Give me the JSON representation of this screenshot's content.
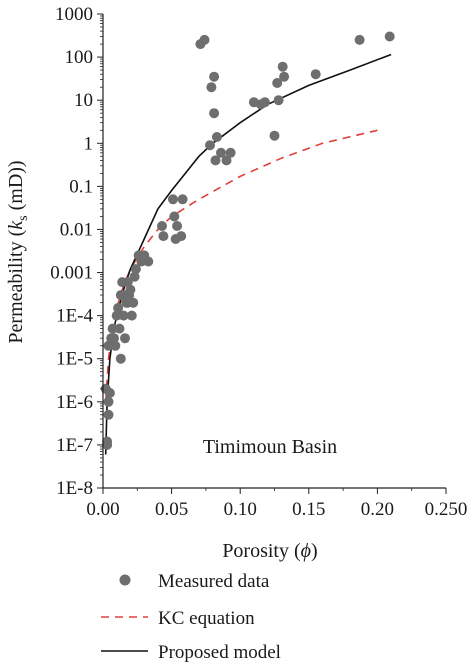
{
  "chart_data": {
    "type": "scatter",
    "title": "",
    "annotation": "Timimoun Basin",
    "xlabel": {
      "prefix": "Porosity (",
      "symbol": "ϕ",
      "suffix": ")"
    },
    "ylabel": {
      "prefix": "Permeability (",
      "symbol": "k",
      "sub": "s",
      "suffix": " (mD))"
    },
    "xlim": [
      0,
      0.25
    ],
    "ylim": [
      1e-08,
      1000
    ],
    "yscale": "log",
    "grid": false,
    "legend_position": "bottom",
    "x_ticks": [
      {
        "value": 0.0,
        "label": "0.00"
      },
      {
        "value": 0.05,
        "label": "0.05"
      },
      {
        "value": 0.1,
        "label": "0.10"
      },
      {
        "value": 0.15,
        "label": "0.15"
      },
      {
        "value": 0.2,
        "label": "0.20"
      },
      {
        "value": 0.25,
        "label": "0.250"
      }
    ],
    "y_ticks": [
      {
        "value": 1000,
        "label": "1000"
      },
      {
        "value": 100,
        "label": "100"
      },
      {
        "value": 10,
        "label": "10"
      },
      {
        "value": 1,
        "label": "1"
      },
      {
        "value": 0.1,
        "label": "0.1"
      },
      {
        "value": 0.01,
        "label": "0.01"
      },
      {
        "value": 0.001,
        "label": "0.001"
      },
      {
        "value": 0.0001,
        "label": "1E-4"
      },
      {
        "value": 1e-05,
        "label": "1E-5"
      },
      {
        "value": 1e-06,
        "label": "1E-6"
      },
      {
        "value": 1e-07,
        "label": "1E-7"
      },
      {
        "value": 1e-08,
        "label": "1E-8"
      }
    ],
    "series": [
      {
        "name": "Measured data",
        "kind": "scatter",
        "color": "#6e6e6e",
        "points": [
          [
            0.002,
            2e-06
          ],
          [
            0.003,
            1e-07
          ],
          [
            0.003,
            1.2e-07
          ],
          [
            0.004,
            5e-07
          ],
          [
            0.004,
            1e-06
          ],
          [
            0.005,
            1.6e-06
          ],
          [
            0.004,
            2e-05
          ],
          [
            0.006,
            3e-05
          ],
          [
            0.007,
            5e-05
          ],
          [
            0.008,
            3e-05
          ],
          [
            0.009,
            2e-05
          ],
          [
            0.01,
            0.0001
          ],
          [
            0.011,
            0.00015
          ],
          [
            0.012,
            5e-05
          ],
          [
            0.013,
            0.0003
          ],
          [
            0.013,
            1e-05
          ],
          [
            0.014,
            0.0006
          ],
          [
            0.015,
            0.0001
          ],
          [
            0.015,
            0.0003
          ],
          [
            0.016,
            3e-05
          ],
          [
            0.017,
            0.0002
          ],
          [
            0.018,
            0.0006
          ],
          [
            0.018,
            0.0002
          ],
          [
            0.019,
            0.0003
          ],
          [
            0.02,
            0.0004
          ],
          [
            0.021,
            0.0001
          ],
          [
            0.022,
            0.0002
          ],
          [
            0.023,
            0.0008
          ],
          [
            0.024,
            0.0012
          ],
          [
            0.026,
            0.0025
          ],
          [
            0.028,
            0.0018
          ],
          [
            0.03,
            0.0025
          ],
          [
            0.033,
            0.0018
          ],
          [
            0.043,
            0.012
          ],
          [
            0.044,
            0.007
          ],
          [
            0.051,
            0.05
          ],
          [
            0.052,
            0.02
          ],
          [
            0.053,
            0.006
          ],
          [
            0.054,
            0.012
          ],
          [
            0.057,
            0.007
          ],
          [
            0.058,
            0.05
          ],
          [
            0.071,
            200
          ],
          [
            0.074,
            250
          ],
          [
            0.078,
            0.9
          ],
          [
            0.079,
            20
          ],
          [
            0.081,
            5
          ],
          [
            0.081,
            35
          ],
          [
            0.082,
            0.4
          ],
          [
            0.083,
            1.4
          ],
          [
            0.086,
            0.6
          ],
          [
            0.09,
            0.4
          ],
          [
            0.093,
            0.6
          ],
          [
            0.11,
            9
          ],
          [
            0.115,
            8
          ],
          [
            0.118,
            9
          ],
          [
            0.125,
            1.5
          ],
          [
            0.127,
            25
          ],
          [
            0.128,
            10
          ],
          [
            0.131,
            60
          ],
          [
            0.132,
            35
          ],
          [
            0.155,
            40
          ],
          [
            0.187,
            250
          ],
          [
            0.209,
            300
          ]
        ]
      },
      {
        "name": "KC equation",
        "kind": "line",
        "style": "dashed",
        "color": "#e0403a",
        "points": [
          [
            0.002,
            1e-06
          ],
          [
            0.004,
            1e-05
          ],
          [
            0.007,
            5e-05
          ],
          [
            0.01,
            0.00015
          ],
          [
            0.015,
            0.0005
          ],
          [
            0.02,
            0.0012
          ],
          [
            0.03,
            0.004
          ],
          [
            0.04,
            0.01
          ],
          [
            0.05,
            0.02
          ],
          [
            0.07,
            0.05
          ],
          [
            0.1,
            0.17
          ],
          [
            0.13,
            0.45
          ],
          [
            0.16,
            1.0
          ],
          [
            0.2,
            2.0
          ]
        ]
      },
      {
        "name": "Proposed model",
        "kind": "line",
        "style": "solid",
        "color": "#111111",
        "points": [
          [
            0.002,
            6e-08
          ],
          [
            0.003,
            1e-06
          ],
          [
            0.005,
            1e-05
          ],
          [
            0.008,
            5e-05
          ],
          [
            0.01,
            0.0001
          ],
          [
            0.015,
            0.0004
          ],
          [
            0.02,
            0.0012
          ],
          [
            0.03,
            0.006
          ],
          [
            0.04,
            0.03
          ],
          [
            0.05,
            0.08
          ],
          [
            0.06,
            0.2
          ],
          [
            0.07,
            0.5
          ],
          [
            0.08,
            1.0
          ],
          [
            0.1,
            3.0
          ],
          [
            0.12,
            8.0
          ],
          [
            0.15,
            22
          ],
          [
            0.18,
            50
          ],
          [
            0.21,
            115
          ]
        ]
      }
    ]
  }
}
